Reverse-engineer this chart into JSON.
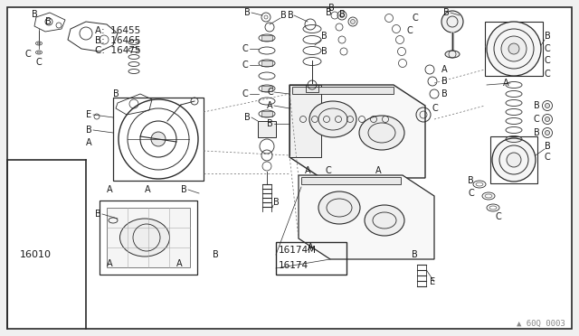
{
  "bg_color": "#f0f0f0",
  "paper_color": "#ffffff",
  "line_color": "#2a2a2a",
  "light_line": "#555555",
  "text_color": "#1a1a1a",
  "legend": [
    "A:  16455",
    "B:  16465",
    "C:  16475"
  ],
  "label_16010": "16010",
  "label_16174M": "16174M",
  "label_16174": "16174",
  "watermark": "▲ 60Q 0003",
  "fig_width": 6.4,
  "fig_height": 3.72,
  "dpi": 100
}
